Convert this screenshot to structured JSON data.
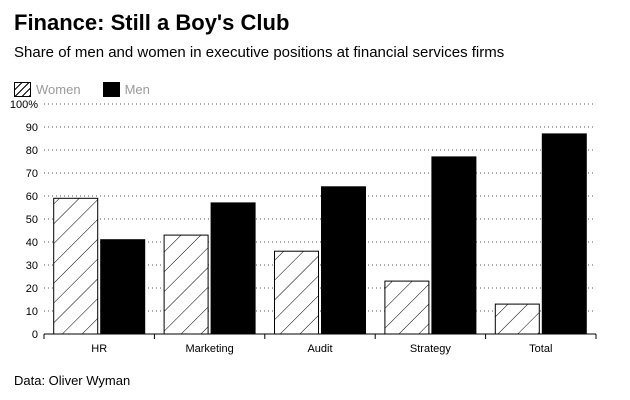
{
  "chart_data": {
    "type": "bar",
    "title": "Finance: Still a Boy's Club",
    "subtitle": "Share of men and women in executive positions at financial services firms",
    "categories": [
      "HR",
      "Marketing",
      "Audit",
      "Strategy",
      "Total"
    ],
    "series": [
      {
        "name": "Women",
        "values": [
          59,
          43,
          36,
          23,
          13
        ],
        "pattern": "hatched"
      },
      {
        "name": "Men",
        "values": [
          41,
          57,
          64,
          77,
          87
        ],
        "color": "#000000"
      }
    ],
    "ylim": [
      0,
      100
    ],
    "yticks": [
      "0",
      "10",
      "20",
      "30",
      "40",
      "50",
      "60",
      "70",
      "80",
      "90",
      "100%"
    ],
    "xlabel": "",
    "ylabel": "",
    "grid": true,
    "legend_position": "top-left",
    "source": "Data: Oliver Wyman"
  }
}
